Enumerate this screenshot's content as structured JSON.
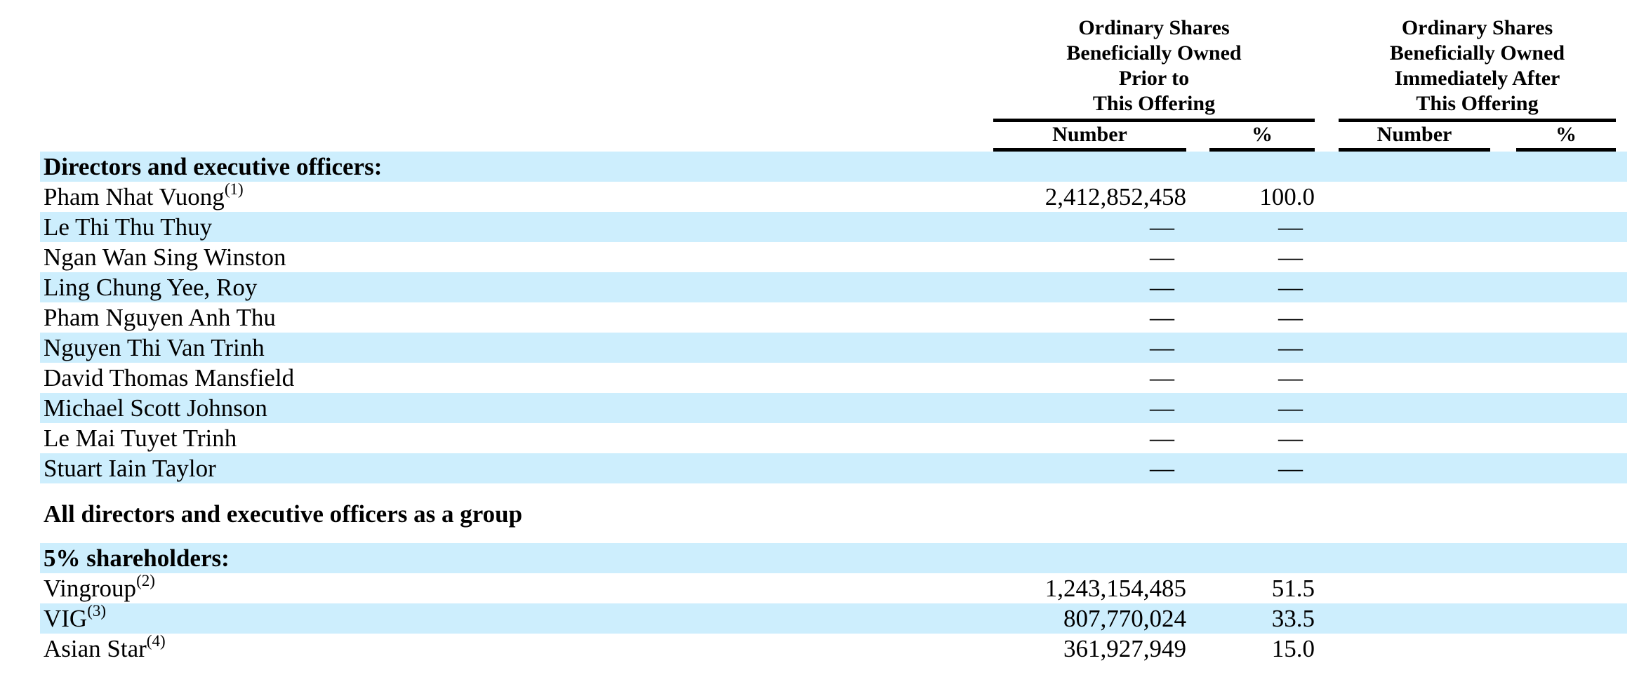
{
  "page": {
    "background_color": "#ffffff",
    "stripe_color": "#cdeefd",
    "text_color": "#000000"
  },
  "table": {
    "column_groups": [
      {
        "title_lines": [
          "Ordinary Shares",
          "Beneficially Owned",
          "Prior to",
          "This Offering"
        ],
        "sub_columns": [
          "Number",
          "%"
        ]
      },
      {
        "title_lines": [
          "Ordinary Shares",
          "Beneficially Owned",
          "Immediately After",
          "This Offering"
        ],
        "sub_columns": [
          "Number",
          "%"
        ]
      }
    ],
    "rows": [
      {
        "label": "Directors and executive officers:",
        "sup": "",
        "prior_number": "",
        "prior_pct": "",
        "after_number": "",
        "after_pct": ""
      },
      {
        "label": "Pham Nhat Vuong",
        "sup": "(1)",
        "prior_number": "2,412,852,458",
        "prior_pct": "100.0",
        "after_number": "",
        "after_pct": ""
      },
      {
        "label": "Le Thi Thu Thuy",
        "sup": "",
        "prior_number": "—",
        "prior_pct": "—",
        "after_number": "",
        "after_pct": ""
      },
      {
        "label": "Ngan Wan Sing Winston",
        "sup": "",
        "prior_number": "—",
        "prior_pct": "—",
        "after_number": "",
        "after_pct": ""
      },
      {
        "label": "Ling Chung Yee, Roy",
        "sup": "",
        "prior_number": "—",
        "prior_pct": "—",
        "after_number": "",
        "after_pct": ""
      },
      {
        "label": "Pham Nguyen Anh Thu",
        "sup": "",
        "prior_number": "—",
        "prior_pct": "—",
        "after_number": "",
        "after_pct": ""
      },
      {
        "label": "Nguyen Thi Van Trinh",
        "sup": "",
        "prior_number": "—",
        "prior_pct": "—",
        "after_number": "",
        "after_pct": ""
      },
      {
        "label": "David Thomas Mansfield",
        "sup": "",
        "prior_number": "—",
        "prior_pct": "—",
        "after_number": "",
        "after_pct": ""
      },
      {
        "label": "Michael Scott Johnson",
        "sup": "",
        "prior_number": "—",
        "prior_pct": "—",
        "after_number": "",
        "after_pct": ""
      },
      {
        "label": "Le Mai Tuyet Trinh",
        "sup": "",
        "prior_number": "—",
        "prior_pct": "—",
        "after_number": "",
        "after_pct": ""
      },
      {
        "label": "Stuart Iain Taylor",
        "sup": "",
        "prior_number": "—",
        "prior_pct": "—",
        "after_number": "",
        "after_pct": ""
      },
      {
        "label": "All directors and executive officers as a group",
        "sup": "",
        "prior_number": "",
        "prior_pct": "",
        "after_number": "",
        "after_pct": ""
      },
      {
        "label": "5% shareholders:",
        "sup": "",
        "prior_number": "",
        "prior_pct": "",
        "after_number": "",
        "after_pct": ""
      },
      {
        "label": "Vingroup",
        "sup": "(2)",
        "prior_number": "1,243,154,485",
        "prior_pct": "51.5",
        "after_number": "",
        "after_pct": ""
      },
      {
        "label": "VIG",
        "sup": "(3)",
        "prior_number": "807,770,024",
        "prior_pct": "33.5",
        "after_number": "",
        "after_pct": ""
      },
      {
        "label": "Asian Star",
        "sup": "(4)",
        "prior_number": "361,927,949",
        "prior_pct": "15.0",
        "after_number": "",
        "after_pct": ""
      }
    ]
  }
}
